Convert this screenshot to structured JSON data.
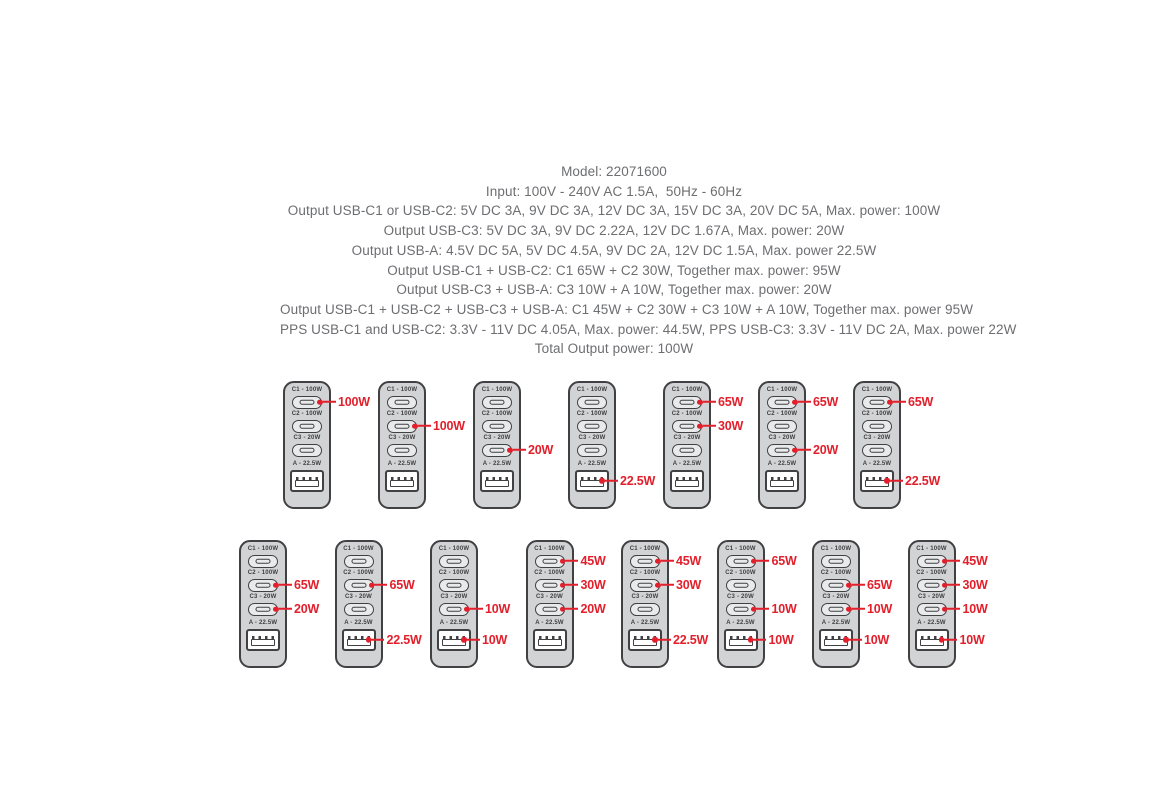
{
  "spec_lines": [
    "Model: 22071600",
    "Input: 100V - 240V AC 1.5A,  50Hz - 60Hz",
    "Output USB-C1 or USB-C2: 5V DC 3A, 9V DC 3A, 12V DC 3A, 15V DC 3A, 20V DC 5A, Max. power: 100W",
    "Output USB-C3: 5V DC 3A, 9V DC 2.22A, 12V DC 1.67A, Max. power: 20W",
    "Output USB-A: 4.5V DC 5A, 5V DC 4.5A, 9V DC 2A, 12V DC 1.5A, Max. power 22.5W",
    "Output USB-C1 + USB-C2: C1 65W + C2 30W, Together max. power: 95W",
    "Output USB-C3 + USB-A: C3 10W + A 10W, Together max. power: 20W",
    "Output USB-C1 + USB-C2 + USB-C3 + USB-A: C1 45W + C2 30W + C3 10W + A 10W, Together max. power 95W",
    "PPS USB-C1 and USB-C2: 3.3V - 11V DC 4.05A, Max. power: 44.5W, PPS USB-C3: 3.3V - 11V DC 2A, Max. power 22W",
    "Total Output power: 100W"
  ],
  "ports": [
    {
      "id": "c1",
      "label": "C1 - 100W",
      "type": "usb-c"
    },
    {
      "id": "c2",
      "label": "C2 - 100W",
      "type": "usb-c"
    },
    {
      "id": "c3",
      "label": "C3 - 20W",
      "type": "usb-c"
    },
    {
      "id": "a",
      "label": "A - 22.5W",
      "type": "usb-a"
    }
  ],
  "rows": [
    {
      "chargers": [
        {
          "annotations": {
            "c1": "100W"
          }
        },
        {
          "annotations": {
            "c2": "100W"
          }
        },
        {
          "annotations": {
            "c3": "20W"
          }
        },
        {
          "annotations": {
            "a": "22.5W"
          }
        },
        {
          "annotations": {
            "c1": "65W",
            "c2": "30W"
          }
        },
        {
          "annotations": {
            "c1": "65W",
            "c3": "20W"
          }
        },
        {
          "annotations": {
            "c1": "65W",
            "a": "22.5W"
          }
        }
      ]
    },
    {
      "chargers": [
        {
          "annotations": {
            "c2": "65W",
            "c3": "20W"
          }
        },
        {
          "annotations": {
            "c2": "65W",
            "a": "22.5W"
          }
        },
        {
          "annotations": {
            "c3": "10W",
            "a": "10W"
          }
        },
        {
          "annotations": {
            "c1": "45W",
            "c2": "30W",
            "c3": "20W"
          }
        },
        {
          "annotations": {
            "c1": "45W",
            "c2": "30W",
            "a": "22.5W"
          }
        },
        {
          "annotations": {
            "c1": "65W",
            "c3": "10W",
            "a": "10W"
          }
        },
        {
          "annotations": {
            "c2": "65W",
            "c3": "10W",
            "a": "10W"
          }
        },
        {
          "annotations": {
            "c1": "45W",
            "c2": "30W",
            "c3": "10W",
            "a": "10W"
          }
        }
      ]
    }
  ],
  "colors": {
    "annotation_red": "#e2202c",
    "charger_body": "#d2d3d5",
    "charger_outline": "#414042",
    "spec_text": "#6d6e71"
  }
}
